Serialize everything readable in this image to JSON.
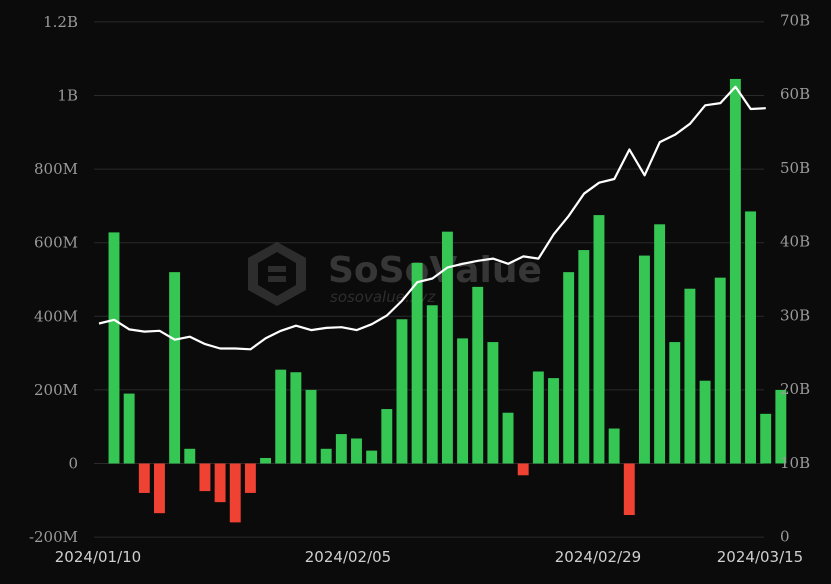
{
  "watermark": {
    "brand": "SoSoValue",
    "sub": "sosovalue.xyz"
  },
  "colors": {
    "background": "#0b0b0b",
    "positive": "#35c653",
    "negative": "#ef4232",
    "line": "#ffffff",
    "grid": "#2b2b2b"
  },
  "chart_data": {
    "type": "bar",
    "title": "",
    "xlabel": "",
    "ylabel": "",
    "x_tick_labels": [
      "2024/01/10",
      "2024/02/05",
      "2024/02/29",
      "2024/03/15"
    ],
    "y_left": {
      "ylim": [
        -200000000,
        1200000000
      ],
      "tick_labels": [
        "-200M",
        "0",
        "200M",
        "400M",
        "600M",
        "800M",
        "1B",
        "1.2B"
      ],
      "tick_values": [
        -200000000,
        0,
        200000000,
        400000000,
        600000000,
        800000000,
        1000000000,
        1200000000
      ]
    },
    "y_right": {
      "ylim": [
        0,
        70000000000
      ],
      "tick_labels": [
        "0",
        "10B",
        "20B",
        "30B",
        "40B",
        "50B",
        "60B",
        "70B"
      ],
      "tick_values": [
        0,
        10000000000,
        20000000000,
        30000000000,
        40000000000,
        50000000000,
        60000000000,
        70000000000
      ]
    },
    "grid": true,
    "series": [
      {
        "type": "bar",
        "axis": "left",
        "values": [
          628000000,
          190000000,
          -80000000,
          -135000000,
          520000000,
          40000000,
          -75000000,
          -105000000,
          -160000000,
          -80000000,
          15000000,
          255000000,
          248000000,
          200000000,
          40000000,
          80000000,
          68000000,
          35000000,
          148000000,
          392000000,
          545000000,
          430000000,
          630000000,
          340000000,
          480000000,
          330000000,
          138000000,
          -32000000,
          250000000,
          232000000,
          520000000,
          580000000,
          675000000,
          95000000,
          -140000000,
          565000000,
          650000000,
          330000000,
          475000000,
          225000000,
          505000000,
          1045000000,
          685000000,
          135000000,
          200000000
        ]
      },
      {
        "type": "line",
        "axis": "right",
        "values": [
          28900000000,
          29400000000,
          28100000000,
          27800000000,
          27900000000,
          26700000000,
          27100000000,
          26100000000,
          25500000000,
          25500000000,
          25400000000,
          26900000000,
          27900000000,
          28600000000,
          28000000000,
          28300000000,
          28400000000,
          28000000000,
          28800000000,
          30000000000,
          32000000000,
          34500000000,
          35000000000,
          36500000000,
          37000000000,
          37400000000,
          37700000000,
          37000000000,
          38000000000,
          37700000000,
          41000000000,
          43500000000,
          46500000000,
          48000000000,
          48500000000,
          52500000000,
          49000000000,
          53500000000,
          54500000000,
          56000000000,
          58500000000,
          58800000000,
          61000000000,
          58000000000,
          58100000000
        ]
      }
    ]
  }
}
